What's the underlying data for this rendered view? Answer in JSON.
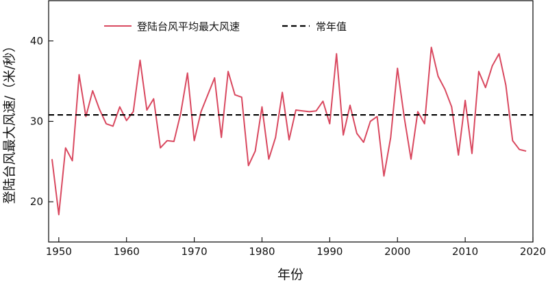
{
  "chart_data": {
    "type": "line",
    "xlabel": "年份",
    "ylabel": "登陆台风最大风速/（米/秒）",
    "xlim": [
      1948.5,
      2020
    ],
    "ylim": [
      15,
      45
    ],
    "xticks": [
      1950,
      1960,
      1970,
      1980,
      1990,
      2000,
      2010,
      2020
    ],
    "yticks": [
      20,
      30,
      40
    ],
    "grid": false,
    "legend_position": "top",
    "series": [
      {
        "name": "登陆台风平均最大风速",
        "color": "#d9485f",
        "style": "solid",
        "x": [
          1949,
          1950,
          1951,
          1952,
          1953,
          1954,
          1955,
          1956,
          1957,
          1958,
          1959,
          1960,
          1961,
          1962,
          1963,
          1964,
          1965,
          1966,
          1967,
          1968,
          1969,
          1970,
          1971,
          1972,
          1973,
          1974,
          1975,
          1976,
          1977,
          1978,
          1979,
          1980,
          1981,
          1982,
          1983,
          1984,
          1985,
          1986,
          1987,
          1988,
          1989,
          1990,
          1991,
          1992,
          1993,
          1994,
          1995,
          1996,
          1997,
          1998,
          1999,
          2000,
          2001,
          2002,
          2003,
          2004,
          2005,
          2006,
          2007,
          2008,
          2009,
          2010,
          2011,
          2012,
          2013,
          2014,
          2015,
          2016,
          2017,
          2018,
          2019
        ],
        "values": [
          25.3,
          18.4,
          26.7,
          25.1,
          35.8,
          30.6,
          33.8,
          31.5,
          29.7,
          29.4,
          31.8,
          30.1,
          31.2,
          37.6,
          31.4,
          32.8,
          26.7,
          27.6,
          27.5,
          31.0,
          36.0,
          27.6,
          31.2,
          33.3,
          35.4,
          28.0,
          36.2,
          33.3,
          33.0,
          24.5,
          26.3,
          31.8,
          25.3,
          28.0,
          33.6,
          27.7,
          31.4,
          31.3,
          31.2,
          31.3,
          32.5,
          29.7,
          38.4,
          28.3,
          32.0,
          28.5,
          27.4,
          30.0,
          30.6,
          23.2,
          28.0,
          36.6,
          30.5,
          25.3,
          31.2,
          29.7,
          39.2,
          35.6,
          34.0,
          31.8,
          25.8,
          32.6,
          26.0,
          36.2,
          34.2,
          36.9,
          38.4,
          34.5,
          27.6,
          26.5,
          26.3
        ]
      },
      {
        "name": "常年值",
        "color": "#000000",
        "style": "dashed",
        "value": 30.8
      }
    ]
  }
}
